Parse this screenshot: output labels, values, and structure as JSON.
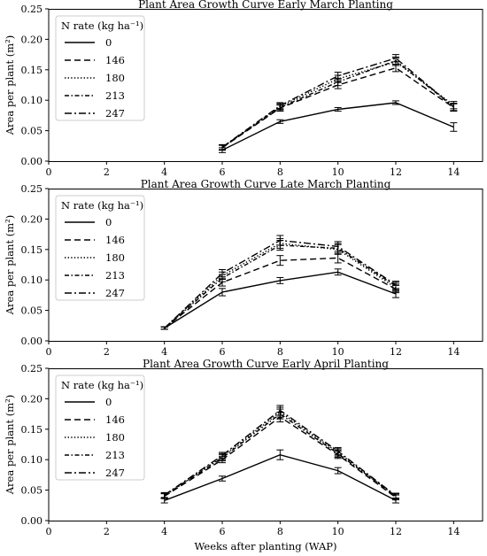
{
  "figure": {
    "xlabel": "Weeks after planting (WAP)"
  },
  "chart_data": [
    {
      "type": "line",
      "title": "Plant Area Growth Curve Early March Planting",
      "ylabel": "Area per plant (m²)",
      "xlim": [
        0,
        15
      ],
      "ylim": [
        0,
        0.25
      ],
      "xticks": [
        0,
        2,
        4,
        6,
        8,
        10,
        12,
        14
      ],
      "yticks": [
        "0.00",
        "0.05",
        "0.10",
        "0.15",
        "0.20",
        "0.25"
      ],
      "legend": {
        "title": "N rate (kg ha⁻¹)",
        "placement": "top-left"
      },
      "x": [
        6,
        8,
        10,
        12
      ],
      "series": [
        {
          "name": "0",
          "dash": "solid",
          "values": [
            0.018,
            0.065,
            0.085,
            0.096
          ],
          "last": 0.056,
          "err": [
            0.004,
            0.003,
            0.003,
            0.003
          ],
          "errLast": 0.007
        },
        {
          "name": "146",
          "dash": "dashed",
          "values": [
            0.022,
            0.087,
            0.125,
            0.153
          ],
          "last": 0.088,
          "err": [
            0.004,
            0.005,
            0.006,
            0.006
          ],
          "errLast": 0.006
        },
        {
          "name": "180",
          "dash": "dotted",
          "values": [
            0.022,
            0.09,
            0.135,
            0.163
          ],
          "last": 0.092,
          "err": [
            0.004,
            0.005,
            0.006,
            0.006
          ],
          "errLast": 0.006
        },
        {
          "name": "213",
          "dash": "dashdot2",
          "values": [
            0.023,
            0.088,
            0.13,
            0.165
          ],
          "last": 0.089,
          "err": [
            0.004,
            0.005,
            0.006,
            0.006
          ],
          "errLast": 0.006
        },
        {
          "name": "247",
          "dash": "dashdot",
          "values": [
            0.023,
            0.091,
            0.14,
            0.169
          ],
          "last": 0.089,
          "err": [
            0.004,
            0.005,
            0.006,
            0.006
          ],
          "errLast": 0.006
        }
      ],
      "xlast": 14
    },
    {
      "type": "line",
      "title": "Plant Area Growth Curve Late March Planting",
      "ylabel": "Area per plant (m²)",
      "xlim": [
        0,
        15
      ],
      "ylim": [
        0,
        0.25
      ],
      "xticks": [
        0,
        2,
        4,
        6,
        8,
        10,
        12,
        14
      ],
      "yticks": [
        "0.00",
        "0.05",
        "0.10",
        "0.15",
        "0.20",
        "0.25"
      ],
      "legend": {
        "title": "N rate (kg ha⁻¹)",
        "placement": "top-left"
      },
      "x": [
        4,
        6,
        8,
        10,
        12
      ],
      "series": [
        {
          "name": "0",
          "dash": "solid",
          "values": [
            0.021,
            0.08,
            0.099,
            0.113,
            0.077
          ],
          "err": [
            0.002,
            0.006,
            0.005,
            0.005,
            0.006
          ]
        },
        {
          "name": "146",
          "dash": "dashed",
          "values": [
            0.021,
            0.096,
            0.132,
            0.136,
            0.085
          ],
          "err": [
            0.002,
            0.006,
            0.008,
            0.008,
            0.006
          ]
        },
        {
          "name": "180",
          "dash": "dotted",
          "values": [
            0.021,
            0.107,
            0.16,
            0.15,
            0.087
          ],
          "err": [
            0.002,
            0.006,
            0.008,
            0.008,
            0.006
          ]
        },
        {
          "name": "213",
          "dash": "dashdot2",
          "values": [
            0.021,
            0.103,
            0.157,
            0.152,
            0.09
          ],
          "err": [
            0.002,
            0.006,
            0.008,
            0.008,
            0.006
          ]
        },
        {
          "name": "247",
          "dash": "dashdot",
          "values": [
            0.021,
            0.111,
            0.165,
            0.155,
            0.092
          ],
          "err": [
            0.002,
            0.006,
            0.008,
            0.008,
            0.006
          ]
        }
      ]
    },
    {
      "type": "line",
      "title": "Plant Area Growth Curve Early April Planting",
      "ylabel": "Area per plant (m²)",
      "xlim": [
        0,
        15
      ],
      "ylim": [
        0,
        0.25
      ],
      "xticks": [
        0,
        2,
        4,
        6,
        8,
        10,
        12,
        14
      ],
      "yticks": [
        "0.00",
        "0.05",
        "0.10",
        "0.15",
        "0.20",
        "0.25"
      ],
      "legend": {
        "title": "N rate (kg ha⁻¹)",
        "placement": "top-left"
      },
      "x": [
        4,
        6,
        8,
        10,
        12
      ],
      "series": [
        {
          "name": "0",
          "dash": "solid",
          "values": [
            0.033,
            0.069,
            0.108,
            0.082,
            0.033
          ],
          "err": [
            0.004,
            0.004,
            0.008,
            0.005,
            0.004
          ]
        },
        {
          "name": "146",
          "dash": "dashed",
          "values": [
            0.04,
            0.1,
            0.17,
            0.108,
            0.038
          ],
          "err": [
            0.004,
            0.005,
            0.008,
            0.006,
            0.004
          ]
        },
        {
          "name": "180",
          "dash": "dotted",
          "values": [
            0.041,
            0.105,
            0.178,
            0.112,
            0.04
          ],
          "err": [
            0.004,
            0.005,
            0.008,
            0.006,
            0.004
          ]
        },
        {
          "name": "213",
          "dash": "dashdot2",
          "values": [
            0.041,
            0.103,
            0.175,
            0.11,
            0.04
          ],
          "err": [
            0.004,
            0.005,
            0.008,
            0.006,
            0.004
          ]
        },
        {
          "name": "247",
          "dash": "dashdot",
          "values": [
            0.042,
            0.107,
            0.181,
            0.114,
            0.041
          ],
          "err": [
            0.004,
            0.005,
            0.008,
            0.006,
            0.004
          ]
        }
      ]
    }
  ]
}
